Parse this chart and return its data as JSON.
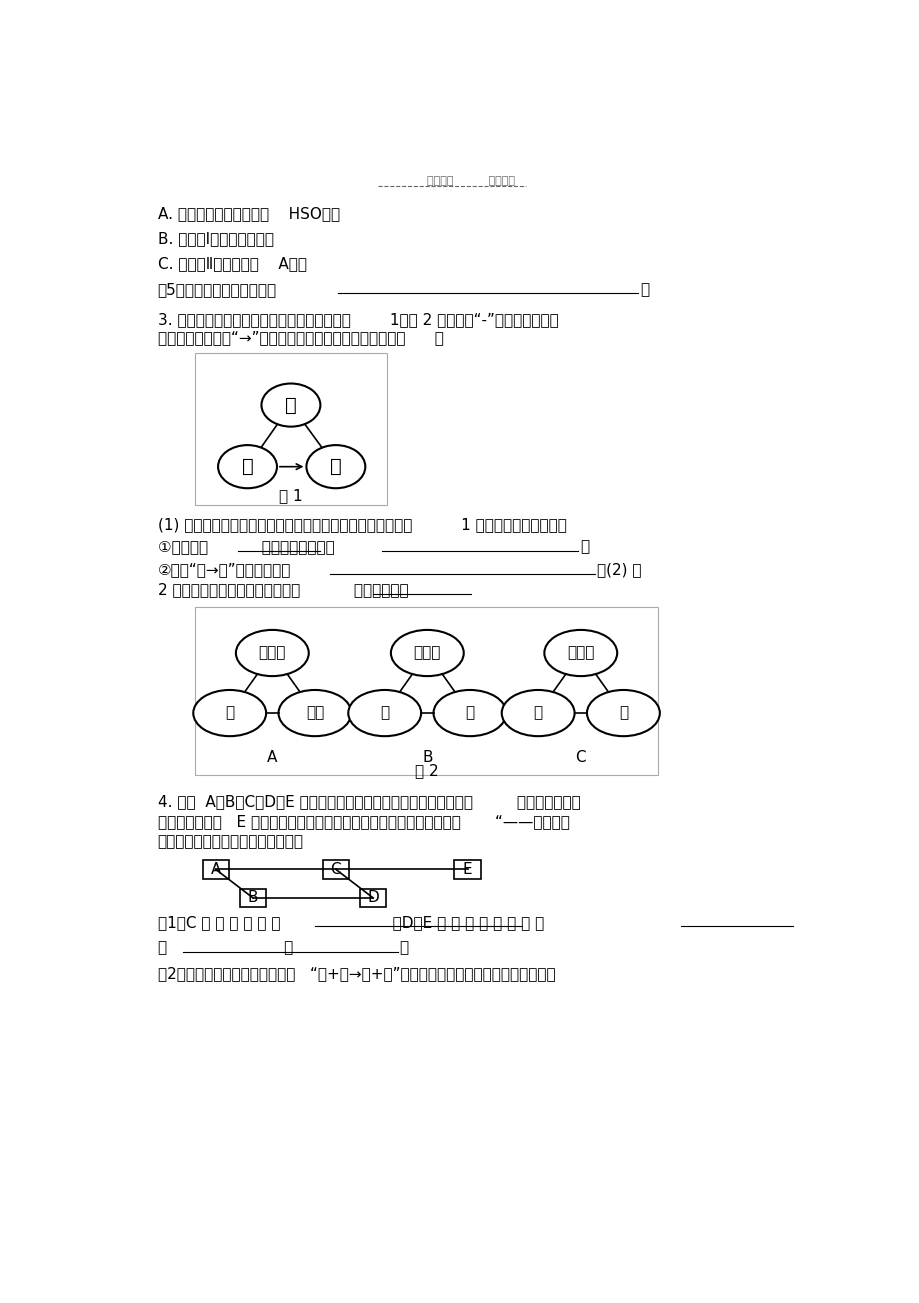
{
  "bg_color": "#ffffff",
  "header_text": "学习必备          欢迎下载",
  "line_A": "A. 往混合粉末中加入的稀    HSO不足",
  "line_B": "B. 往滤液Ⅰ中加入鐵粉不足",
  "line_C": "C. 往滤渣Ⅱ中加入试剂    A不足",
  "line_5": "（5）请写出铜的一种用途：",
  "line_3_intro": "3. 不同类别的物质间存在着一定的关系，如图        1、图 2 所示。（“-”表示相连的两种",
  "line_3_intro2": "物质能发生反应，“→”表示某种物质可转化为另一种物质。      ）",
  "fig1_labels": [
    "甲",
    "乙",
    "丙"
  ],
  "fig1_caption": "图 1",
  "q1_text": "(1) 碳酸钓溶液、氮氧化钓溶液和稀盐酸之间的变化关系如图          1 所示，回答下列问题：",
  "q1_1a": "①乙物质是           ，它的一种用途是",
  "q1_1b": "。",
  "q1_2a": "②写出“乙→丙”的化学方程式",
  "q1_2b": "。(2) 图",
  "q1_3a": "2 能体现某些物质间变化关系的是           。（填标号）",
  "fig2_A_labels": [
    "氧化物",
    "酸",
    "金属"
  ],
  "fig2_B_labels": [
    "氧化物",
    "盐",
    "碌"
  ],
  "fig2_C_labels": [
    "氧化物",
    "酸",
    "碌"
  ],
  "fig2_A_caption": "A",
  "fig2_B_caption": "B",
  "fig2_C_caption": "C",
  "fig2_caption": "图 2",
  "q4_intro1": "4. 已知  A、B、C、D、E 分别是稀盐酸、氮氧化钓溶液、硜酸铜溶液         、氧化鐵和一氧",
  "q4_intro2": "化碳中的一种，   E 是实验室一种常见溶液，它们之间的关系如图所示，       “——两端的物",
  "q4_intro3": "质在一定条件下可以反应。请回答：",
  "q4_1a": "（1）C 的 一 种 用 途 是                       ；D、E 反 应 的 化 学 方 程 式",
  "q4_2a": "为                        。",
  "q4_3a": "（2）上述各物质间的反应均可用   “甲+乙→丙+丁”表示，其中不属于四种基本反应类型，"
}
